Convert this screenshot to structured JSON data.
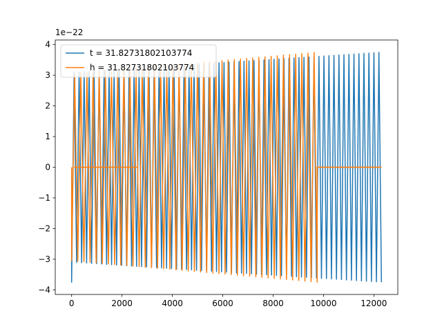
{
  "chart_data": {
    "type": "line",
    "title": "",
    "xlabel": "",
    "ylabel": "",
    "y_scale_label": "1e−22",
    "xlim": [
      -650,
      12950
    ],
    "ylim": [
      -4.15,
      4.15
    ],
    "xticks": [
      0,
      2000,
      4000,
      6000,
      8000,
      10000,
      12000
    ],
    "xtick_labels": [
      "0",
      "2000",
      "4000",
      "6000",
      "8000",
      "10000",
      "12000"
    ],
    "yticks": [
      -4,
      -3,
      -2,
      -1,
      0,
      1,
      2,
      3,
      4
    ],
    "ytick_labels": [
      "−4",
      "−3",
      "−2",
      "−1",
      "0",
      "1",
      "2",
      "3",
      "4"
    ],
    "grid": false,
    "legend_position": "upper left",
    "series": [
      {
        "name": "t = 31.82731802103774",
        "color": "#1f77b4",
        "x_start": 0,
        "x_end": 12300,
        "oscillation_count": 124,
        "envelope": [
          {
            "x": 0,
            "amplitude": 3.75
          },
          {
            "x": 100,
            "amplitude": 3.1
          },
          {
            "x": 12300,
            "amplitude": 3.75
          }
        ]
      },
      {
        "name": "h = 31.82731802103774",
        "color": "#ff7f0e",
        "x_start": 0,
        "x_end": 12300,
        "oscillation_count": 80,
        "active_range": [
          0,
          9750
        ],
        "flat_segments": [
          {
            "x_start": 100,
            "x_end": 2630,
            "y": 0
          },
          {
            "x_start": 9750,
            "x_end": 12300,
            "y": 0
          }
        ],
        "envelope": [
          {
            "x": 0,
            "amplitude": 3.05
          },
          {
            "x": 9750,
            "amplitude": 3.75
          }
        ]
      }
    ]
  }
}
